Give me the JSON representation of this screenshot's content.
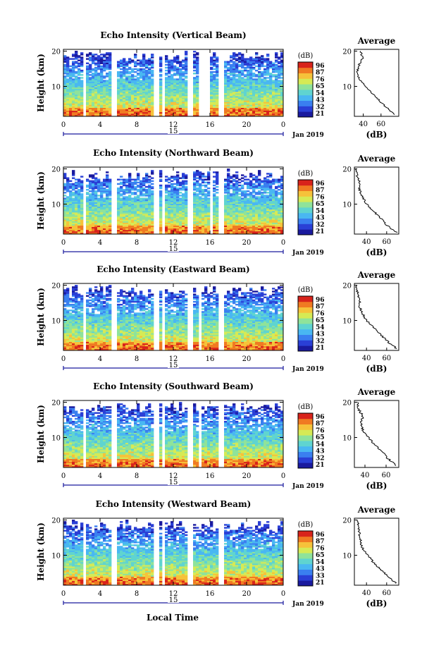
{
  "chart_data": [
    {
      "type": "heatmap",
      "title": "Echo Intensity (Vertical Beam)",
      "ylabel": "Height (km)",
      "xlabel": "",
      "x_ticks": [
        "0",
        "4",
        "8",
        "12",
        "16",
        "20",
        "0"
      ],
      "xlim": [
        0,
        24
      ],
      "y_ticks": [
        "20",
        "10"
      ],
      "ylim": [
        1.5,
        20.5
      ],
      "date_marker": "15",
      "date_label": "Jan 2019",
      "colorbar": {
        "unit": "(dB)",
        "ticks": [
          "96",
          "87",
          "76",
          "65",
          "54",
          "43",
          "32",
          "21"
        ]
      },
      "profile": {
        "title": "Average",
        "xlabel": "(dB)",
        "x_ticks": [
          "40",
          "60"
        ],
        "xlim": [
          30,
          80
        ],
        "y_ticks": [
          "20",
          "10"
        ],
        "heights": [
          2,
          4,
          6,
          8,
          10,
          12,
          14,
          16,
          18,
          20
        ],
        "values": [
          76,
          66,
          58,
          50,
          42,
          36,
          33,
          35,
          39,
          37
        ]
      },
      "gaps_hours": [
        [
          2.3,
          2.6
        ],
        [
          5.2,
          5.9
        ],
        [
          10.0,
          10.4
        ],
        [
          10.9,
          11.1
        ],
        [
          13.5,
          14.0
        ],
        [
          14.9,
          16.0
        ],
        [
          16.9,
          17.1
        ],
        [
          17.3,
          17.6
        ]
      ]
    },
    {
      "type": "heatmap",
      "title": "Echo Intensity (Northward Beam)",
      "ylabel": "Height (km)",
      "xlabel": "",
      "x_ticks": [
        "0",
        "4",
        "8",
        "12",
        "16",
        "20",
        "0"
      ],
      "xlim": [
        0,
        24
      ],
      "y_ticks": [
        "20",
        "10"
      ],
      "ylim": [
        1.5,
        20.5
      ],
      "date_marker": "15",
      "date_label": "Jan 2019",
      "colorbar": {
        "unit": "(dB)",
        "ticks": [
          "96",
          "87",
          "76",
          "65",
          "54",
          "43",
          "32",
          "21"
        ]
      },
      "profile": {
        "title": "Average",
        "xlabel": "(dB)",
        "x_ticks": [
          "40",
          "60"
        ],
        "xlim": [
          28,
          72
        ],
        "y_ticks": [
          "20",
          "10"
        ],
        "heights": [
          2,
          4,
          6,
          8,
          10,
          12,
          14,
          16,
          18,
          20
        ],
        "values": [
          70,
          60,
          54,
          47,
          40,
          36,
          33,
          33,
          31,
          30
        ]
      },
      "gaps_hours": [
        [
          2.3,
          2.6
        ],
        [
          5.2,
          5.9
        ],
        [
          10.0,
          10.4
        ],
        [
          10.9,
          11.1
        ],
        [
          13.5,
          14.0
        ],
        [
          15.9,
          16.2
        ],
        [
          16.9,
          17.1
        ],
        [
          17.3,
          17.6
        ]
      ]
    },
    {
      "type": "heatmap",
      "title": "Echo Intensity (Eastward Beam)",
      "ylabel": "Height (km)",
      "xlabel": "",
      "x_ticks": [
        "0",
        "4",
        "8",
        "12",
        "16",
        "20",
        "0"
      ],
      "xlim": [
        0,
        24
      ],
      "y_ticks": [
        "20",
        "10"
      ],
      "ylim": [
        1.5,
        20.5
      ],
      "date_marker": "15",
      "date_label": "Jan 2019",
      "colorbar": {
        "unit": "(dB)",
        "ticks": [
          "96",
          "87",
          "76",
          "65",
          "54",
          "43",
          "32",
          "21"
        ]
      },
      "profile": {
        "title": "Average",
        "xlabel": "(dB)",
        "x_ticks": [
          "40",
          "60"
        ],
        "xlim": [
          28,
          72
        ],
        "y_ticks": [
          "20",
          "10"
        ],
        "heights": [
          2,
          4,
          6,
          8,
          10,
          12,
          14,
          16,
          18,
          20
        ],
        "values": [
          70,
          61,
          54,
          47,
          40,
          36,
          33,
          33,
          31,
          30
        ]
      },
      "gaps_hours": [
        [
          2.3,
          2.6
        ],
        [
          5.2,
          5.9
        ],
        [
          10.0,
          10.4
        ],
        [
          10.9,
          11.1
        ],
        [
          13.5,
          14.0
        ],
        [
          14.8,
          15.1
        ],
        [
          16.9,
          17.1
        ],
        [
          17.3,
          17.6
        ]
      ]
    },
    {
      "type": "heatmap",
      "title": "Echo Intensity (Southward Beam)",
      "ylabel": "Height (km)",
      "xlabel": "",
      "x_ticks": [
        "0",
        "4",
        "8",
        "12",
        "16",
        "20",
        "0"
      ],
      "xlim": [
        0,
        24
      ],
      "y_ticks": [
        "20",
        "10"
      ],
      "ylim": [
        1.5,
        20.5
      ],
      "date_marker": "15",
      "date_label": "Jan 2019",
      "colorbar": {
        "unit": "(dB)",
        "ticks": [
          "96",
          "87",
          "76",
          "65",
          "54",
          "43",
          "32",
          "21"
        ]
      },
      "profile": {
        "title": "Average",
        "xlabel": "(dB)",
        "x_ticks": [
          "40",
          "60"
        ],
        "xlim": [
          30,
          72
        ],
        "y_ticks": [
          "20",
          "10"
        ],
        "heights": [
          2,
          4,
          6,
          8,
          10,
          12,
          14,
          16,
          18,
          20
        ],
        "values": [
          70,
          62,
          56,
          49,
          43,
          38,
          36,
          38,
          34,
          33
        ]
      },
      "gaps_hours": [
        [
          2.3,
          2.6
        ],
        [
          5.2,
          5.9
        ],
        [
          10.0,
          10.4
        ],
        [
          10.9,
          11.1
        ],
        [
          13.5,
          14.0
        ],
        [
          14.8,
          15.1
        ],
        [
          16.9,
          17.1
        ],
        [
          17.3,
          17.6
        ]
      ]
    },
    {
      "type": "heatmap",
      "title": "Echo Intensity (Westward Beam)",
      "ylabel": "Height (km)",
      "xlabel": "Local Time",
      "x_ticks": [
        "0",
        "4",
        "8",
        "12",
        "16",
        "20",
        "0"
      ],
      "xlim": [
        0,
        24
      ],
      "y_ticks": [
        "20",
        "10"
      ],
      "ylim": [
        1.5,
        20.5
      ],
      "date_marker": "15",
      "date_label": "Jan 2019",
      "colorbar": {
        "unit": "(dB)",
        "ticks": [
          "96",
          "87",
          "76",
          "65",
          "54",
          "43",
          "33",
          "21"
        ]
      },
      "profile": {
        "title": "Average",
        "xlabel": "(dB)",
        "x_ticks": [
          "40",
          "60"
        ],
        "xlim": [
          28,
          72
        ],
        "y_ticks": [
          "20",
          "10"
        ],
        "heights": [
          2,
          4,
          6,
          8,
          10,
          12,
          14,
          16,
          18,
          20
        ],
        "values": [
          70,
          61,
          54,
          47,
          41,
          36,
          34,
          33,
          32,
          31
        ]
      },
      "gaps_hours": [
        [
          2.3,
          2.6
        ],
        [
          5.2,
          5.9
        ],
        [
          10.0,
          10.4
        ],
        [
          10.9,
          11.1
        ],
        [
          13.5,
          14.0
        ],
        [
          16.9,
          17.1
        ],
        [
          17.3,
          17.6
        ]
      ]
    }
  ],
  "colormap": [
    "#1a1a9e",
    "#2a3fd6",
    "#3a7ff0",
    "#49b7f2",
    "#5fd4d0",
    "#8fe39a",
    "#d6ea55",
    "#f6c23a",
    "#f07a22",
    "#d8231b"
  ]
}
